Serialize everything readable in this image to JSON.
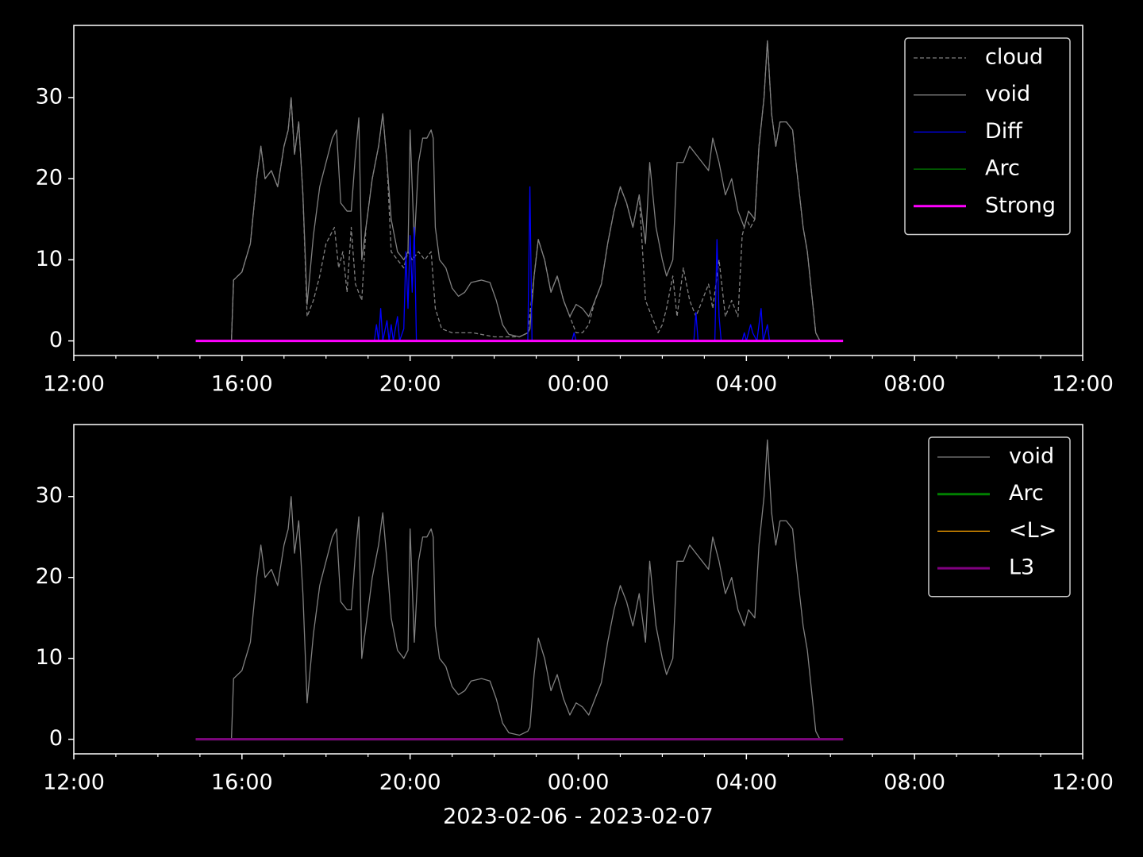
{
  "chart_data": [
    {
      "type": "line",
      "xlim": [
        0,
        24
      ],
      "ylim": [
        -1.8,
        38.9
      ],
      "xticks": [
        {
          "value": 0,
          "label": "12:00"
        },
        {
          "value": 4,
          "label": "16:00"
        },
        {
          "value": 8,
          "label": "20:00"
        },
        {
          "value": 12,
          "label": "00:00"
        },
        {
          "value": 16,
          "label": "04:00"
        },
        {
          "value": 20,
          "label": "08:00"
        },
        {
          "value": 24,
          "label": "12:00"
        }
      ],
      "xminorticks": [
        1,
        2,
        3,
        5,
        6,
        7,
        9,
        10,
        11,
        13,
        14,
        15,
        17,
        18,
        19,
        21,
        22,
        23
      ],
      "yticks": [
        0,
        10,
        20,
        30
      ],
      "legend": "upper right",
      "series": [
        {
          "name": "cloud",
          "color": "#808080",
          "style": "dashed",
          "width": 1.3,
          "x": [
            2.9,
            3.75,
            3.8,
            4.0,
            4.2,
            4.35,
            4.45,
            4.55,
            4.7,
            4.85,
            5.0,
            5.1,
            5.17,
            5.25,
            5.35,
            5.45,
            5.55,
            5.7,
            5.85,
            6.0,
            6.1,
            6.2,
            6.3,
            6.4,
            6.5,
            6.6,
            6.7,
            6.85,
            6.95,
            7.1,
            7.25,
            7.35,
            7.45,
            7.55,
            7.7,
            7.85,
            7.95,
            8.05,
            8.2,
            8.35,
            8.5,
            8.6,
            8.75,
            9.0,
            9.5,
            10.0,
            10.35,
            10.6,
            10.8,
            10.95,
            11.05,
            11.2,
            11.35,
            11.5,
            11.65,
            11.8,
            11.95,
            12.1,
            12.25,
            12.4,
            12.55,
            12.7,
            12.85,
            13.0,
            13.15,
            13.3,
            13.45,
            13.6,
            13.75,
            13.9,
            14.0,
            14.1,
            14.25,
            14.35,
            14.5,
            14.65,
            14.8,
            14.95,
            15.1,
            15.2,
            15.35,
            15.5,
            15.65,
            15.8,
            15.9,
            16.0,
            16.1,
            16.2,
            16.3,
            16.42,
            16.5,
            16.6,
            16.7,
            16.8,
            16.95,
            17.1,
            17.2,
            17.35,
            17.45,
            17.55,
            17.65,
            17.75
          ],
          "values": [
            0,
            0,
            7.5,
            8.5,
            12,
            20,
            24,
            20,
            21,
            19,
            24,
            26,
            30,
            23,
            27,
            18,
            3,
            5,
            8,
            12,
            13,
            14,
            9,
            11,
            6,
            14,
            7,
            5,
            14,
            20,
            24,
            28,
            22,
            11,
            10,
            9,
            11,
            10,
            11,
            10,
            11,
            4,
            1.5,
            1,
            1,
            0.5,
            0.5,
            0.5,
            1,
            8,
            12.5,
            10,
            6,
            8,
            5,
            3,
            1,
            1,
            2,
            5,
            7,
            12,
            16,
            19,
            17,
            14,
            18,
            5,
            3,
            1,
            2,
            4,
            8,
            3,
            9,
            5,
            3,
            5,
            7,
            4,
            10,
            3,
            5,
            3,
            13,
            15,
            14,
            15,
            24,
            30,
            37,
            28,
            24,
            27,
            27,
            26,
            21,
            14,
            11,
            6,
            1,
            0
          ]
        },
        {
          "name": "void",
          "color": "#808080",
          "style": "solid",
          "width": 1.3,
          "x": [
            2.9,
            3.75,
            3.8,
            4.0,
            4.2,
            4.35,
            4.45,
            4.55,
            4.7,
            4.85,
            5.0,
            5.1,
            5.17,
            5.25,
            5.35,
            5.45,
            5.55,
            5.7,
            5.85,
            6.0,
            6.15,
            6.25,
            6.35,
            6.5,
            6.6,
            6.7,
            6.78,
            6.85,
            6.95,
            7.1,
            7.25,
            7.35,
            7.45,
            7.55,
            7.7,
            7.85,
            7.95,
            8.0,
            8.1,
            8.2,
            8.3,
            8.4,
            8.5,
            8.55,
            8.6,
            8.7,
            8.85,
            9.0,
            9.15,
            9.3,
            9.45,
            9.7,
            9.9,
            10.05,
            10.2,
            10.35,
            10.6,
            10.8,
            10.85,
            10.95,
            11.05,
            11.2,
            11.35,
            11.5,
            11.65,
            11.8,
            11.95,
            12.1,
            12.25,
            12.4,
            12.55,
            12.7,
            12.85,
            13.0,
            13.15,
            13.3,
            13.45,
            13.6,
            13.7,
            13.85,
            14.0,
            14.1,
            14.25,
            14.35,
            14.5,
            14.65,
            14.8,
            14.95,
            15.1,
            15.2,
            15.35,
            15.5,
            15.65,
            15.8,
            15.95,
            16.05,
            16.2,
            16.3,
            16.42,
            16.5,
            16.6,
            16.7,
            16.8,
            16.95,
            17.1,
            17.2,
            17.35,
            17.45,
            17.55,
            17.65,
            17.75
          ],
          "values": [
            0,
            0,
            7.5,
            8.5,
            12,
            20,
            24,
            20,
            21,
            19,
            24,
            26,
            30,
            23,
            27,
            18,
            4.5,
            13,
            19,
            22,
            25,
            26,
            17,
            16,
            16,
            23,
            27.5,
            10,
            14,
            20,
            24,
            28,
            22,
            15,
            11,
            10,
            11,
            26,
            12,
            22,
            25,
            25,
            26,
            25,
            14,
            10,
            9,
            6.5,
            5.5,
            6,
            7.2,
            7.5,
            7.2,
            5,
            2,
            0.8,
            0.5,
            1,
            1.5,
            8,
            12.5,
            10,
            6,
            8,
            5,
            3,
            4.5,
            4,
            3,
            5,
            7,
            12,
            16,
            19,
            17,
            14,
            18,
            12,
            22,
            14,
            10,
            8,
            10,
            22,
            22,
            24,
            23,
            22,
            21,
            25,
            22,
            18,
            20,
            16,
            14,
            16,
            15,
            24,
            30,
            37,
            28,
            24,
            27,
            27,
            26,
            21,
            14,
            11,
            6,
            1,
            0
          ]
        },
        {
          "name": "Diff",
          "color": "#0000ff",
          "style": "solid",
          "width": 1.3,
          "x": [
            2.9,
            7.15,
            7.2,
            7.25,
            7.3,
            7.35,
            7.45,
            7.5,
            7.55,
            7.6,
            7.7,
            7.75,
            7.85,
            7.9,
            7.95,
            8.0,
            8.05,
            8.1,
            8.15,
            10.8,
            10.85,
            10.9,
            11.85,
            11.9,
            11.95,
            14.75,
            14.8,
            14.85,
            15.25,
            15.3,
            15.35,
            15.4,
            15.9,
            15.95,
            16.0,
            16.1,
            16.15,
            16.25,
            16.35,
            16.4,
            16.5,
            16.55,
            18.3
          ],
          "values": [
            0,
            0,
            2,
            0,
            4,
            0,
            2.5,
            0,
            2,
            0,
            3,
            0,
            1.5,
            11,
            4,
            13,
            6,
            14,
            0,
            0,
            19,
            0,
            0,
            1,
            0,
            0,
            3.5,
            0,
            0,
            12.5,
            3,
            0,
            0,
            1,
            0,
            2,
            1,
            0,
            4,
            0,
            2,
            0,
            0
          ]
        },
        {
          "name": "Arc",
          "color": "#008000",
          "style": "solid",
          "width": 1.3,
          "x": [
            2.9,
            18.3
          ],
          "values": [
            0,
            0
          ]
        },
        {
          "name": "Strong",
          "color": "#ff00ff",
          "style": "solid",
          "width": 3,
          "x": [
            2.9,
            18.3
          ],
          "values": [
            0,
            0
          ]
        }
      ]
    },
    {
      "type": "line",
      "xlim": [
        0,
        24
      ],
      "ylim": [
        -1.8,
        38.9
      ],
      "xticks": [
        {
          "value": 0,
          "label": "12:00"
        },
        {
          "value": 4,
          "label": "16:00"
        },
        {
          "value": 8,
          "label": "20:00"
        },
        {
          "value": 12,
          "label": "00:00"
        },
        {
          "value": 16,
          "label": "04:00"
        },
        {
          "value": 20,
          "label": "08:00"
        },
        {
          "value": 24,
          "label": "12:00"
        }
      ],
      "xminorticks": [
        1,
        2,
        3,
        5,
        6,
        7,
        9,
        10,
        11,
        13,
        14,
        15,
        17,
        18,
        19,
        21,
        22,
        23
      ],
      "yticks": [
        0,
        10,
        20,
        30
      ],
      "legend": "upper right",
      "xlabel": "2023-02-06 - 2023-02-07",
      "series": [
        {
          "name": "void",
          "color": "#808080",
          "style": "solid",
          "width": 1.3,
          "x": [
            2.9,
            3.75,
            3.8,
            4.0,
            4.2,
            4.35,
            4.45,
            4.55,
            4.7,
            4.85,
            5.0,
            5.1,
            5.17,
            5.25,
            5.35,
            5.45,
            5.55,
            5.7,
            5.85,
            6.0,
            6.15,
            6.25,
            6.35,
            6.5,
            6.6,
            6.7,
            6.78,
            6.85,
            6.95,
            7.1,
            7.25,
            7.35,
            7.45,
            7.55,
            7.7,
            7.85,
            7.95,
            8.0,
            8.1,
            8.2,
            8.3,
            8.4,
            8.5,
            8.55,
            8.6,
            8.7,
            8.85,
            9.0,
            9.15,
            9.3,
            9.45,
            9.7,
            9.9,
            10.05,
            10.2,
            10.35,
            10.6,
            10.8,
            10.85,
            10.95,
            11.05,
            11.2,
            11.35,
            11.5,
            11.65,
            11.8,
            11.95,
            12.1,
            12.25,
            12.4,
            12.55,
            12.7,
            12.85,
            13.0,
            13.15,
            13.3,
            13.45,
            13.6,
            13.7,
            13.85,
            14.0,
            14.1,
            14.25,
            14.35,
            14.5,
            14.65,
            14.8,
            14.95,
            15.1,
            15.2,
            15.35,
            15.5,
            15.65,
            15.8,
            15.95,
            16.05,
            16.2,
            16.3,
            16.42,
            16.5,
            16.6,
            16.7,
            16.8,
            16.95,
            17.1,
            17.2,
            17.35,
            17.45,
            17.55,
            17.65,
            17.75
          ],
          "values": [
            0,
            0,
            7.5,
            8.5,
            12,
            20,
            24,
            20,
            21,
            19,
            24,
            26,
            30,
            23,
            27,
            18,
            4.5,
            13,
            19,
            22,
            25,
            26,
            17,
            16,
            16,
            23,
            27.5,
            10,
            14,
            20,
            24,
            28,
            22,
            15,
            11,
            10,
            11,
            26,
            12,
            22,
            25,
            25,
            26,
            25,
            14,
            10,
            9,
            6.5,
            5.5,
            6,
            7.2,
            7.5,
            7.2,
            5,
            2,
            0.8,
            0.5,
            1,
            1.5,
            8,
            12.5,
            10,
            6,
            8,
            5,
            3,
            4.5,
            4,
            3,
            5,
            7,
            12,
            16,
            19,
            17,
            14,
            18,
            12,
            22,
            14,
            10,
            8,
            10,
            22,
            22,
            24,
            23,
            22,
            21,
            25,
            22,
            18,
            20,
            16,
            14,
            16,
            15,
            24,
            30,
            37,
            28,
            24,
            27,
            27,
            26,
            21,
            14,
            11,
            6,
            1,
            0
          ]
        },
        {
          "name": "Arc",
          "color": "#008000",
          "style": "solid",
          "width": 3,
          "x": [
            2.9,
            18.3
          ],
          "values": [
            0,
            0
          ]
        },
        {
          "name": "<L>",
          "color": "#ffa500",
          "style": "solid",
          "width": 1.3,
          "x": [
            2.9,
            18.3
          ],
          "values": [
            0,
            0
          ]
        },
        {
          "name": "L3",
          "color": "#800080",
          "style": "solid",
          "width": 3,
          "x": [
            2.9,
            18.3
          ],
          "values": [
            0,
            0
          ]
        }
      ]
    }
  ]
}
